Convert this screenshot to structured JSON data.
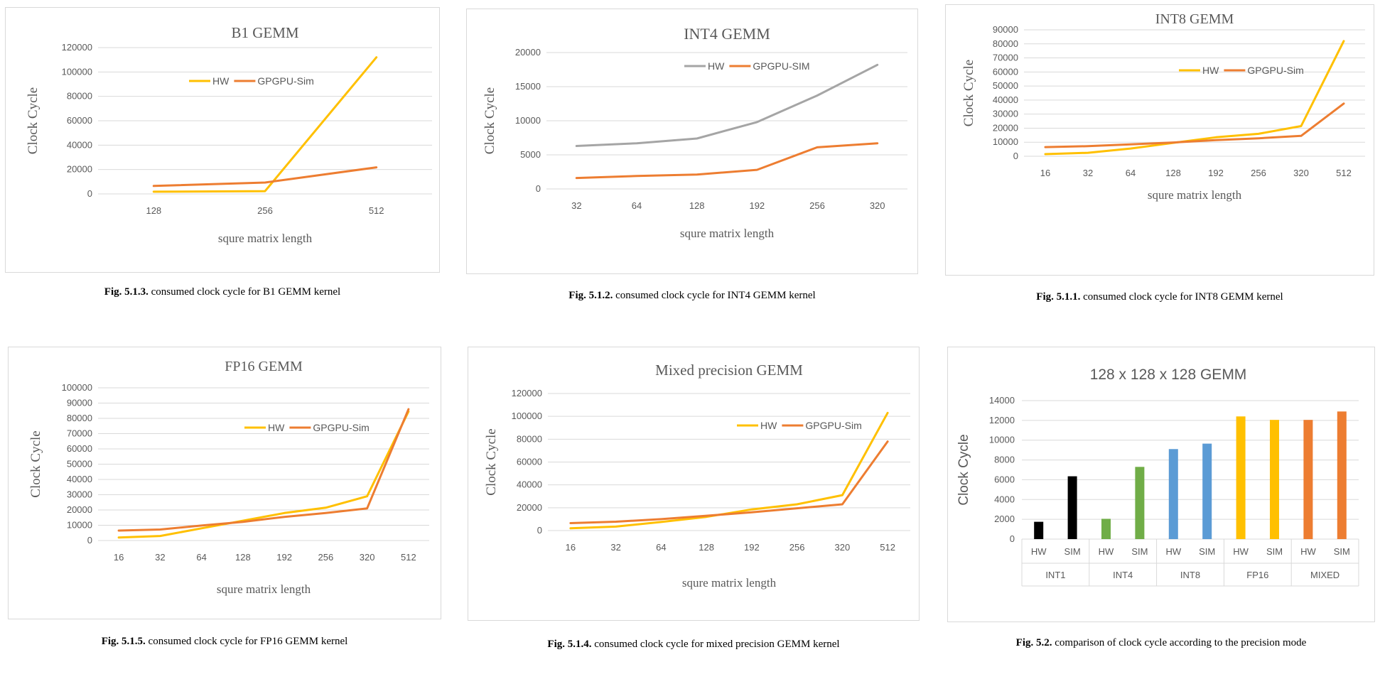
{
  "chart_data": [
    {
      "id": "b1",
      "type": "line",
      "title": "B1 GEMM",
      "xlabel": "squre matrix length",
      "ylabel": "Clock Cycle",
      "categories": [
        "128",
        "256",
        "512"
      ],
      "yticks": [
        "0",
        "20000",
        "40000",
        "60000",
        "80000",
        "100000",
        "120000"
      ],
      "ylim": [
        0,
        120000
      ],
      "legend_position": "top-center",
      "series": [
        {
          "name": "HW",
          "color": "#FFC000",
          "values": [
            1800,
            2300,
            112000
          ]
        },
        {
          "name": "GPGPU-Sim",
          "color": "#ED7D31",
          "values": [
            6500,
            9300,
            21800
          ]
        }
      ],
      "caption_label": "Fig. 5.1.3.",
      "caption_text": " consumed clock cycle for B1 GEMM kernel"
    },
    {
      "id": "int4",
      "type": "line",
      "title": "INT4 GEMM",
      "xlabel": "squre matrix length",
      "ylabel": "Clock Cycle",
      "categories": [
        "32",
        "64",
        "128",
        "192",
        "256",
        "320"
      ],
      "yticks": [
        "0",
        "5000",
        "10000",
        "15000",
        "20000"
      ],
      "ylim": [
        0,
        20000
      ],
      "legend_position": "top-right",
      "series": [
        {
          "name": "HW",
          "color": "#A5A5A5",
          "values": [
            6300,
            6700,
            7400,
            9800,
            13700,
            18200
          ]
        },
        {
          "name": "GPGPU-SIM",
          "color": "#ED7D31",
          "values": [
            1600,
            1900,
            2100,
            2800,
            6100,
            6700
          ]
        }
      ],
      "caption_label": "Fig. 5.1.2.",
      "caption_text": " consumed clock cycle for INT4 GEMM kernel"
    },
    {
      "id": "int8",
      "type": "line",
      "title": "INT8 GEMM",
      "xlabel": "squre matrix length",
      "ylabel": "Clock Cycle",
      "categories": [
        "16",
        "32",
        "64",
        "128",
        "192",
        "256",
        "320",
        "512"
      ],
      "yticks": [
        "0",
        "10000",
        "20000",
        "30000",
        "40000",
        "50000",
        "60000",
        "70000",
        "80000",
        "90000"
      ],
      "ylim": [
        0,
        90000
      ],
      "legend_position": "top-right",
      "series": [
        {
          "name": "HW",
          "color": "#FFC000",
          "values": [
            1500,
            2500,
            5500,
            9500,
            13500,
            16000,
            21500,
            82000
          ]
        },
        {
          "name": "GPGPU-Sim",
          "color": "#ED7D31",
          "values": [
            6500,
            7200,
            8500,
            9800,
            11500,
            12800,
            14500,
            37500
          ]
        }
      ],
      "caption_label": "Fig. 5.1.1.",
      "caption_text": " consumed clock cycle for INT8 GEMM kernel"
    },
    {
      "id": "fp16",
      "type": "line",
      "title": "FP16 GEMM",
      "xlabel": "squre matrix length",
      "ylabel": "Clock Cycle",
      "categories": [
        "16",
        "32",
        "64",
        "128",
        "192",
        "256",
        "320",
        "512"
      ],
      "yticks": [
        "0",
        "10000",
        "20000",
        "30000",
        "40000",
        "50000",
        "60000",
        "70000",
        "80000",
        "90000",
        "100000"
      ],
      "ylim": [
        0,
        100000
      ],
      "legend_position": "top-right",
      "series": [
        {
          "name": "HW",
          "color": "#FFC000",
          "values": [
            2000,
            3000,
            8000,
            13000,
            18000,
            21500,
            29000,
            84500
          ]
        },
        {
          "name": "GPGPU-Sim",
          "color": "#ED7D31",
          "values": [
            6500,
            7200,
            9800,
            12200,
            15500,
            18000,
            21000,
            86000
          ]
        }
      ],
      "caption_label": "Fig. 5.1.5.",
      "caption_text": " consumed clock cycle for FP16 GEMM kernel"
    },
    {
      "id": "mixed",
      "type": "line",
      "title": "Mixed precision GEMM",
      "xlabel": "squre matrix length",
      "ylabel": "Clock Cycle",
      "categories": [
        "16",
        "32",
        "64",
        "128",
        "192",
        "256",
        "320",
        "512"
      ],
      "yticks": [
        "0",
        "20000",
        "40000",
        "60000",
        "80000",
        "100000",
        "120000"
      ],
      "ylim": [
        0,
        120000
      ],
      "legend_position": "top-right",
      "series": [
        {
          "name": "HW",
          "color": "#FFC000",
          "values": [
            2000,
            3500,
            7500,
            12000,
            18500,
            23000,
            31000,
            103000
          ]
        },
        {
          "name": "GPGPU-Sim",
          "color": "#ED7D31",
          "values": [
            6500,
            7800,
            10000,
            13000,
            16000,
            19500,
            23000,
            78000
          ]
        }
      ],
      "caption_label": "Fig. 5.1.4.",
      "caption_text": " consumed clock cycle for mixed precision GEMM kernel"
    },
    {
      "id": "bar128",
      "type": "bar",
      "title": "128 x 128 x 128 GEMM",
      "ylabel": "Clock Cycle",
      "yticks": [
        "0",
        "2000",
        "4000",
        "6000",
        "8000",
        "10000",
        "12000",
        "14000"
      ],
      "ylim": [
        0,
        14000
      ],
      "groups": [
        {
          "name": "INT1",
          "color": "#000000",
          "labels": [
            "HW",
            "SIM"
          ],
          "values": [
            1750,
            6350
          ]
        },
        {
          "name": "INT4",
          "color": "#70AD47",
          "labels": [
            "HW",
            "SIM"
          ],
          "values": [
            2050,
            7300
          ]
        },
        {
          "name": "INT8",
          "color": "#5B9BD5",
          "labels": [
            "HW",
            "SIM"
          ],
          "values": [
            9100,
            9650
          ]
        },
        {
          "name": "FP16",
          "color": "#FFC000",
          "labels": [
            "HW",
            "SIM"
          ],
          "values": [
            12400,
            12050
          ]
        },
        {
          "name": "MIXED",
          "color": "#ED7D31",
          "labels": [
            "HW",
            "SIM"
          ],
          "values": [
            12050,
            12900
          ]
        }
      ],
      "caption_label": "Fig. 5.2.",
      "caption_text": " comparison of clock cycle according to the precision mode"
    }
  ]
}
